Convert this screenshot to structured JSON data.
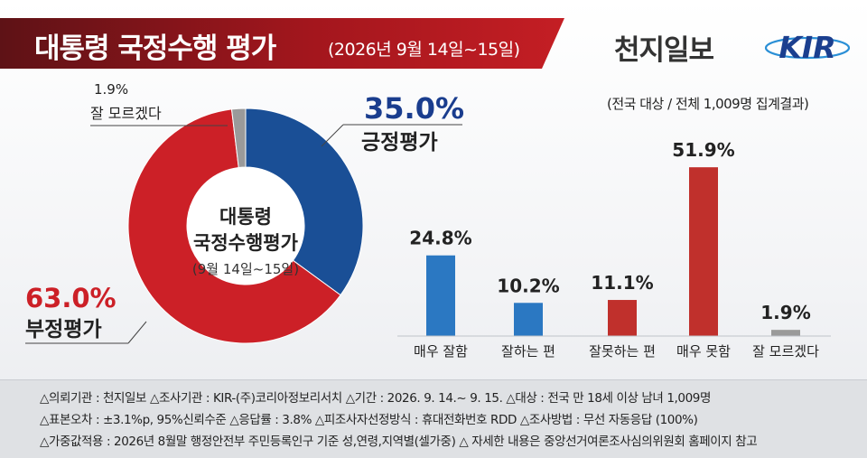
{
  "header": {
    "title": "대통령 국정수행 평가",
    "date": "(2026년 9월 14일~15일)",
    "brand": "천지일보",
    "logo_text": "KIR",
    "basis": "(전국 대상 / 전체 1,009명 집계결과)"
  },
  "donut_center": {
    "line1": "대통령",
    "line2": "국정수행평가",
    "line3": "(9월 14일~15일)"
  },
  "chart_data": [
    {
      "type": "pie",
      "labels": [
        "긍정평가",
        "부정평가",
        "잘 모르겠다"
      ],
      "values": [
        35.0,
        63.0,
        1.9
      ],
      "value_labels": [
        "35.0%",
        "63.0%",
        "1.9%"
      ],
      "colors": [
        "#1a4f96",
        "#cc2027",
        "#9a9a9a"
      ]
    },
    {
      "type": "bar",
      "categories": [
        "매우 잘함",
        "잘하는 편",
        "잘못하는 편",
        "매우 못함",
        "잘 모르겠다"
      ],
      "values": [
        24.8,
        10.2,
        11.1,
        51.9,
        1.9
      ],
      "value_labels": [
        "24.8%",
        "10.2%",
        "11.1%",
        "51.9%",
        "1.9%"
      ],
      "colors": [
        "#2b78c2",
        "#2b78c2",
        "#c0302c",
        "#c0302c",
        "#9a9a9a"
      ],
      "ylim": [
        0,
        55
      ]
    }
  ],
  "notes": [
    "△의뢰기관 : 천지일보   △조사기관 : KIR-(주)코리아정보리서치   △기간 : 2026. 9. 14.~ 9. 15.  △대상 : 전국 만 18세 이상 남녀 1,009명",
    "△표본오차 : ±3.1%p, 95%신뢰수준  △응답률 : 3.8%  △피조사자선정방식 : 휴대전화번호 RDD  △조사방법 : 무선 자동응답 (100%)",
    "△가중값적용 : 2026년 8월말 행정안전부 주민등록인구 기준 성,연령,지역별(셀가중)  △ 자세한 내용은 중앙선거여론조사심의위원회 홈페이지 참고"
  ]
}
